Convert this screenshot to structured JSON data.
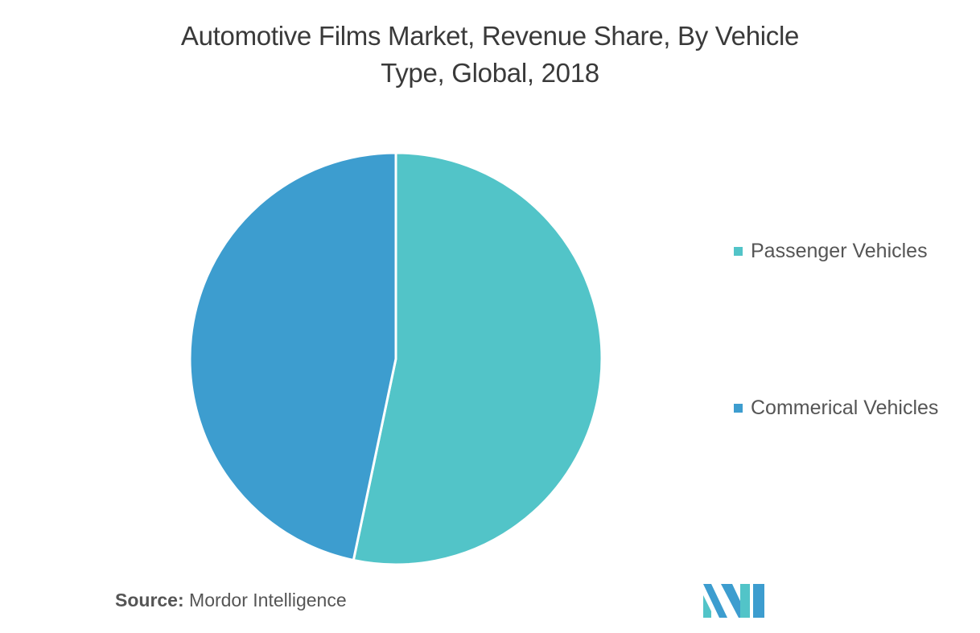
{
  "chart_data": {
    "type": "pie",
    "title": "Automotive Films Market, Revenue Share, By Vehicle Type, Global, 2018",
    "title_lines": [
      "Automotive Films Market, Revenue Share, By Vehicle",
      "Type, Global, 2018"
    ],
    "categories": [
      "Passenger Vehicles",
      "Commerical Vehicles"
    ],
    "values": [
      53.3,
      46.7
    ],
    "colors": [
      "#52c4c8",
      "#3d9dcf"
    ],
    "start_angle_deg": 0,
    "direction": "clockwise",
    "legend_position": "right"
  },
  "legend": {
    "items": [
      {
        "label": "Passenger Vehicles",
        "color": "#52c4c8"
      },
      {
        "label": "Commerical Vehicles",
        "color": "#3d9dcf"
      }
    ]
  },
  "source": {
    "prefix": "Source:",
    "text": " Mordor Intelligence"
  },
  "logo": {
    "icon": "mordor-intelligence-logo-icon",
    "colors": [
      "#52c4c8",
      "#3d9dcf"
    ]
  }
}
